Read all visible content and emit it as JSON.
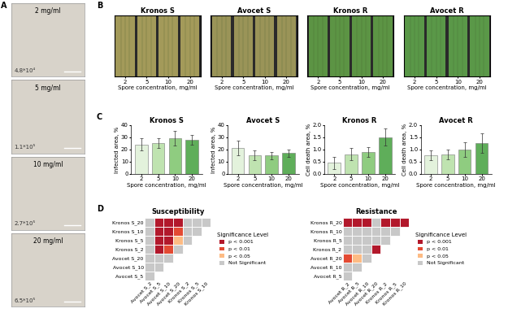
{
  "panel_labels": [
    "A",
    "B",
    "C",
    "D"
  ],
  "microscopy": [
    {
      "label": "2 mg/ml",
      "count": "4.8*10⁴"
    },
    {
      "label": "5 mg/ml",
      "count": "1.1*10⁵"
    },
    {
      "label": "10 mg/ml",
      "count": "2.7*10⁵"
    },
    {
      "label": "20 mg/ml",
      "count": "6.5*10⁵"
    }
  ],
  "leaf_images": {
    "xlabel": "Spore concentration, mg/ml",
    "concentrations": [
      "2",
      "5",
      "10",
      "20"
    ],
    "images": [
      {
        "title": "Kronos S",
        "color": "#a39a5a"
      },
      {
        "title": "Avocet S",
        "color": "#9a9458"
      },
      {
        "title": "Kronos R",
        "color": "#5c9444"
      },
      {
        "title": "Avocet R",
        "color": "#5a9848"
      }
    ]
  },
  "chart_data": [
    {
      "type": "bar",
      "title": "Kronos S",
      "xlabel": "Spore concentration, mg/ml",
      "ylabel": "Infected area, %",
      "categories": [
        "2",
        "5",
        "10",
        "20"
      ],
      "values": [
        24,
        25,
        29,
        28
      ],
      "errors": [
        5,
        4,
        6,
        4
      ],
      "colors": [
        "#e3f2dc",
        "#bfe3b0",
        "#8fcc80",
        "#5fae5a"
      ],
      "ylim": [
        0,
        40
      ],
      "yticks": [
        0,
        10,
        20,
        30,
        40
      ]
    },
    {
      "type": "bar",
      "title": "Avocet S",
      "xlabel": "Spore concentration, mg/ml",
      "ylabel": "Infected area, %",
      "categories": [
        "2",
        "5",
        "10",
        "20"
      ],
      "values": [
        21,
        15,
        15,
        17
      ],
      "errors": [
        6,
        4,
        3,
        3
      ],
      "colors": [
        "#e3f2dc",
        "#bfe3b0",
        "#8fcc80",
        "#5fae5a"
      ],
      "ylim": [
        0,
        40
      ],
      "yticks": [
        0,
        10,
        20,
        30,
        40
      ]
    },
    {
      "type": "bar",
      "title": "Kronos R",
      "xlabel": "Spore concentration, mg/ml",
      "ylabel": "Cell death area, %",
      "categories": [
        "2",
        "5",
        "10",
        "20"
      ],
      "values": [
        0.45,
        0.8,
        0.9,
        1.5
      ],
      "errors": [
        0.25,
        0.25,
        0.2,
        0.35
      ],
      "colors": [
        "#e3f2dc",
        "#bfe3b0",
        "#8fcc80",
        "#5fae5a"
      ],
      "ylim": [
        0,
        2
      ],
      "yticks": [
        {
          "value": 0,
          "label": "0.0"
        },
        {
          "value": 0.5,
          "label": "0.5"
        },
        {
          "value": 1,
          "label": "1.0"
        },
        {
          "value": 1.5,
          "label": "1.5"
        },
        {
          "value": 2,
          "label": "2.0"
        }
      ]
    },
    {
      "type": "bar",
      "title": "Avocet R",
      "xlabel": "Spore concentration, mg/ml",
      "ylabel": "Cell death area, %",
      "categories": [
        "2",
        "5",
        "10",
        "20"
      ],
      "values": [
        0.75,
        0.8,
        1.0,
        1.25
      ],
      "errors": [
        0.2,
        0.2,
        0.3,
        0.4
      ],
      "colors": [
        "#e3f2dc",
        "#bfe3b0",
        "#8fcc80",
        "#5fae5a"
      ],
      "ylim": [
        0,
        2
      ],
      "yticks": [
        {
          "value": 0,
          "label": "0.0"
        },
        {
          "value": 0.5,
          "label": "0.5"
        },
        {
          "value": 1,
          "label": "1.0"
        },
        {
          "value": 1.5,
          "label": "1.5"
        },
        {
          "value": 2,
          "label": "2.0"
        }
      ]
    }
  ],
  "significance": {
    "legend_title": "Significance Level",
    "levels": [
      {
        "name": "p < 0.001",
        "color": "#b2182b"
      },
      {
        "name": "p < 0.01",
        "color": "#e34a33"
      },
      {
        "name": "p < 0.05",
        "color": "#fdbb84"
      },
      {
        "name": "Not Significant",
        "color": "#c8c8c8"
      }
    ],
    "matrices": [
      {
        "title": "Susceptibility",
        "rows": [
          "Kronos S_20",
          "Kronos S_10",
          "Kronos S_5",
          "Kronos S_2",
          "Avocet S_20",
          "Avocet S_10",
          "Avocet S_5"
        ],
        "columns": [
          "Avocet S_2",
          "Avocet S_5",
          "Avocet S_10",
          "Avocet S_20",
          "Kronos S_2",
          "Kronos S_5",
          "Kronos S_10"
        ],
        "cells": [
          [
            "Not Significant",
            "p < 0.001",
            "p < 0.001",
            "p < 0.001",
            "Not Significant",
            "Not Significant",
            "Not Significant"
          ],
          [
            "Not Significant",
            "p < 0.001",
            "p < 0.001",
            "p < 0.01",
            "Not Significant",
            "Not Significant"
          ],
          [
            "Not Significant",
            "p < 0.001",
            "p < 0.001",
            "p < 0.05",
            "Not Significant"
          ],
          [
            "Not Significant",
            "p < 0.001",
            "p < 0.01",
            "Not Significant"
          ],
          [
            "Not Significant",
            "Not Significant",
            "Not Significant"
          ],
          [
            "Not Significant",
            "Not Significant"
          ],
          [
            "Not Significant"
          ]
        ]
      },
      {
        "title": "Resistance",
        "rows": [
          "Kronos R_20",
          "Kronos R_10",
          "Kronos R_5",
          "Kronos R_2",
          "Avocet R_20",
          "Avocet R_10",
          "Avocet R_5"
        ],
        "columns": [
          "Avocet R_2",
          "Avocet R_5",
          "Avocet R_10",
          "Avocet R_20",
          "Kronos R_2",
          "Kronos R_5",
          "Kronos R_10"
        ],
        "cells": [
          [
            "p < 0.001",
            "p < 0.001",
            "p < 0.001",
            "Not Significant",
            "p < 0.001",
            "p < 0.001",
            "p < 0.001"
          ],
          [
            "Not Significant",
            "Not Significant",
            "Not Significant",
            "Not Significant",
            "Not Significant",
            "Not Significant"
          ],
          [
            "Not Significant",
            "Not Significant",
            "Not Significant",
            "Not Significant",
            "Not Significant"
          ],
          [
            "Not Significant",
            "Not Significant",
            "Not Significant",
            "p < 0.001"
          ],
          [
            "p < 0.01",
            "p < 0.05",
            "Not Significant"
          ],
          [
            "Not Significant",
            "Not Significant"
          ],
          [
            "Not Significant"
          ]
        ]
      }
    ]
  }
}
